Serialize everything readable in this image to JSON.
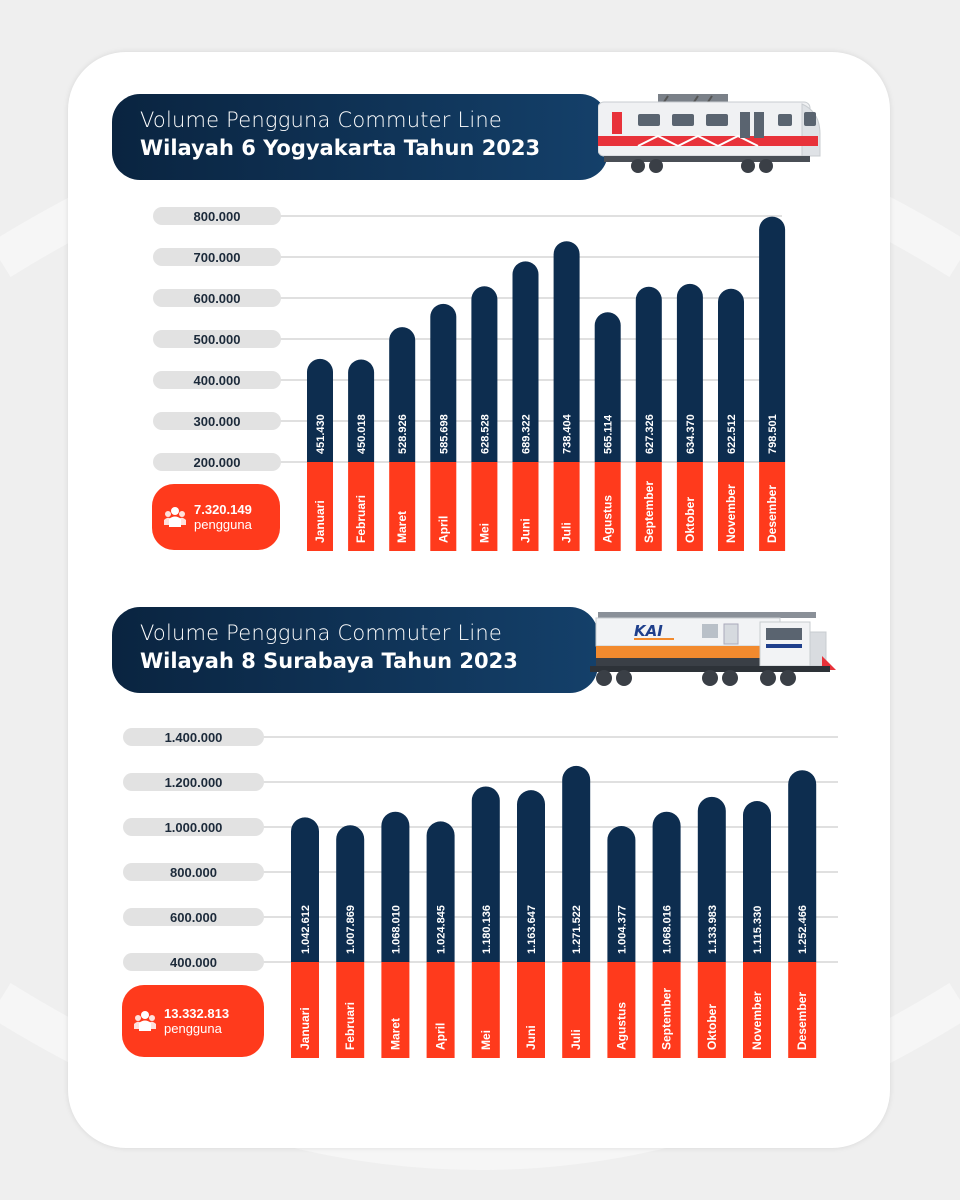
{
  "charts": [
    {
      "title_line1": "Volume Pengguna Commuter Line",
      "title_line2": "Wilayah 6 Yogyakarta Tahun 2023",
      "total_value": "7.320.149",
      "total_label": "pengguna"
    },
    {
      "title_line1": "Volume Pengguna Commuter Line",
      "title_line2": "Wilayah 8 Surabaya Tahun 2023",
      "total_value": "13.332.813",
      "total_label": "pengguna"
    }
  ],
  "train2_logo": "KAI",
  "colors": {
    "navy": "#0d2d4f",
    "orange": "#ff3a1c",
    "tick_pill": "#e2e2e2",
    "train_red": "#e8323a"
  },
  "chart_data": [
    {
      "type": "bar",
      "title": "Volume Pengguna Commuter Line Wilayah 6 Yogyakarta Tahun 2023",
      "categories": [
        "Januari",
        "Februari",
        "Maret",
        "April",
        "Mei",
        "Juni",
        "Juli",
        "Agustus",
        "September",
        "Oktober",
        "November",
        "Desember"
      ],
      "values": [
        451430,
        450018,
        528926,
        585698,
        628528,
        689322,
        738404,
        565114,
        627326,
        634370,
        622512,
        798501
      ],
      "value_labels": [
        "451.430",
        "450.018",
        "528.926",
        "585.698",
        "628.528",
        "689.322",
        "738.404",
        "565.114",
        "627.326",
        "634.370",
        "622.512",
        "798.501"
      ],
      "yticks": [
        "800.000",
        "700.000",
        "600.000",
        "500.000",
        "400.000",
        "300.000",
        "200.000"
      ],
      "ytick_values": [
        800000,
        700000,
        600000,
        500000,
        400000,
        300000,
        200000
      ],
      "ylim": [
        200000,
        800000
      ],
      "grid": true
    },
    {
      "type": "bar",
      "title": "Volume Pengguna Commuter Line Wilayah 8 Surabaya Tahun 2023",
      "categories": [
        "Januari",
        "Februari",
        "Maret",
        "April",
        "Mei",
        "Juni",
        "Juli",
        "Agustus",
        "September",
        "Oktober",
        "November",
        "Desember"
      ],
      "values": [
        1042612,
        1007869,
        1068010,
        1024845,
        1180136,
        1163647,
        1271522,
        1004377,
        1068016,
        1133983,
        1115330,
        1252466
      ],
      "value_labels": [
        "1.042.612",
        "1.007.869",
        "1.068.010",
        "1.024.845",
        "1.180.136",
        "1.163.647",
        "1.271.522",
        "1.004.377",
        "1.068.016",
        "1.133.983",
        "1.115.330",
        "1.252.466"
      ],
      "yticks": [
        "1.400.000",
        "1.200.000",
        "1.000.000",
        "800.000",
        "600.000",
        "400.000"
      ],
      "ytick_values": [
        1400000,
        1200000,
        1000000,
        800000,
        600000,
        400000
      ],
      "ylim": [
        400000,
        1400000
      ],
      "grid": true
    }
  ]
}
